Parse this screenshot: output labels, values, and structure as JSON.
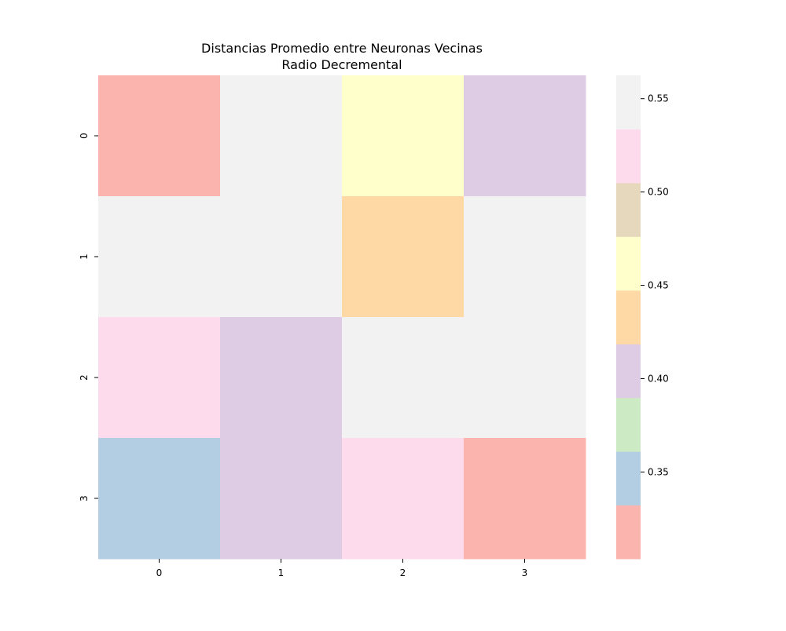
{
  "chart_data": {
    "type": "heatmap",
    "title": "Distancias Promedio entre Neuronas Vecinas",
    "subtitle": "Radio Decremental",
    "rows": [
      "0",
      "1",
      "2",
      "3"
    ],
    "cols": [
      "0",
      "1",
      "2",
      "3"
    ],
    "values": [
      [
        0.318,
        0.55,
        0.46,
        0.405
      ],
      [
        0.55,
        0.55,
        0.43,
        0.55
      ],
      [
        0.515,
        0.405,
        0.55,
        0.55
      ],
      [
        0.34,
        0.405,
        0.515,
        0.318
      ]
    ],
    "colorbar": {
      "min": 0.3035,
      "max": 0.5625,
      "ticks": [
        0.35,
        0.4,
        0.45,
        0.5,
        0.55
      ],
      "tick_labels": [
        "0.35",
        "0.40",
        "0.45",
        "0.50",
        "0.55"
      ],
      "colors": [
        "#fbb4ae",
        "#b3cde3",
        "#ccebc5",
        "#decbe4",
        "#fed9a6",
        "#ffffcc",
        "#e5d8bd",
        "#fddaec",
        "#f2f2f2"
      ]
    },
    "grid": false
  }
}
